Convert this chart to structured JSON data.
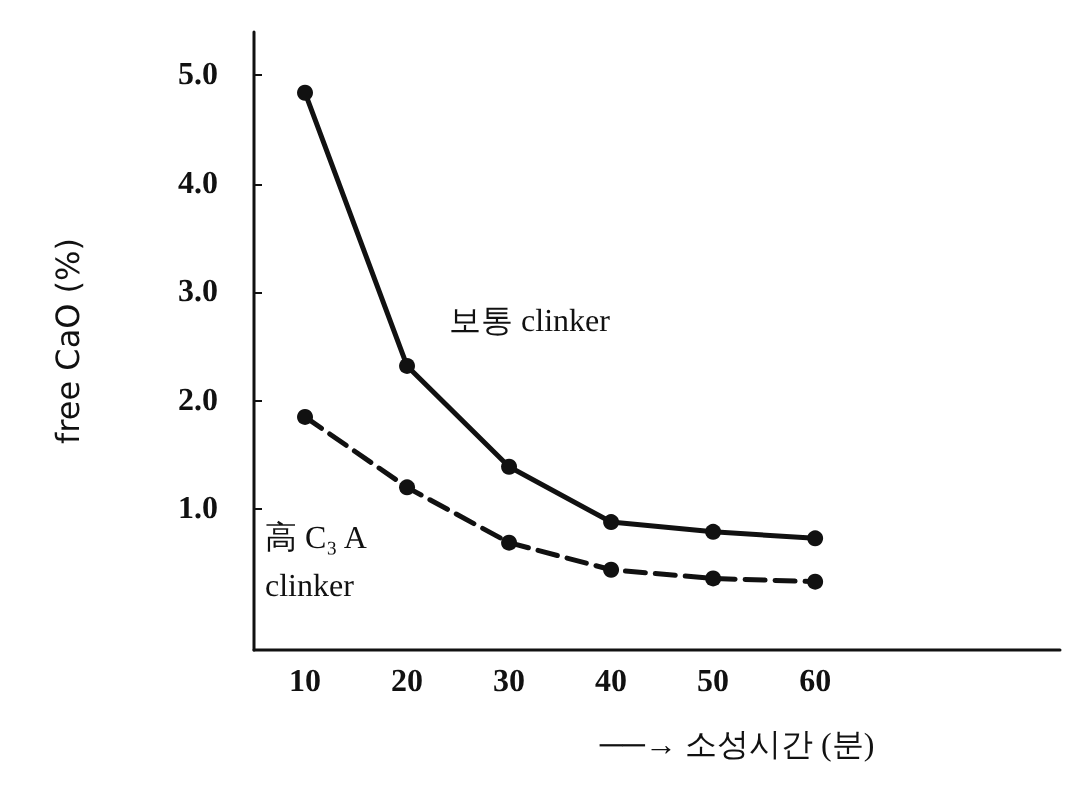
{
  "chart_data": {
    "type": "line",
    "xlabel": "──→ 소성시간 (분)",
    "ylabel": "free CaO (%)",
    "x": [
      10,
      20,
      30,
      40,
      50,
      60
    ],
    "series": [
      {
        "name": "보통 clinker",
        "color": "#111111",
        "line_style": "solid",
        "values": [
          4.84,
          2.32,
          1.39,
          0.88,
          0.79,
          0.73
        ]
      },
      {
        "name": "高 C₃ A\nclinker",
        "color": "#111111",
        "line_style": "dashed",
        "values": [
          1.85,
          1.2,
          0.69,
          0.44,
          0.36,
          0.33
        ]
      }
    ],
    "xlim": [
      5,
      84
    ],
    "xticks": [
      10,
      20,
      30,
      40,
      50,
      60
    ],
    "ylim": [
      -0.3,
      5.4
    ],
    "yticks": [
      {
        "value": 1,
        "label": "1.0"
      },
      {
        "value": 2,
        "label": "2.0"
      },
      {
        "value": 3,
        "label": "3.0"
      },
      {
        "value": 4,
        "label": "4.0"
      },
      {
        "value": 5,
        "label": "5.0"
      }
    ],
    "marker": "circle",
    "grid": false,
    "legend": false
  }
}
